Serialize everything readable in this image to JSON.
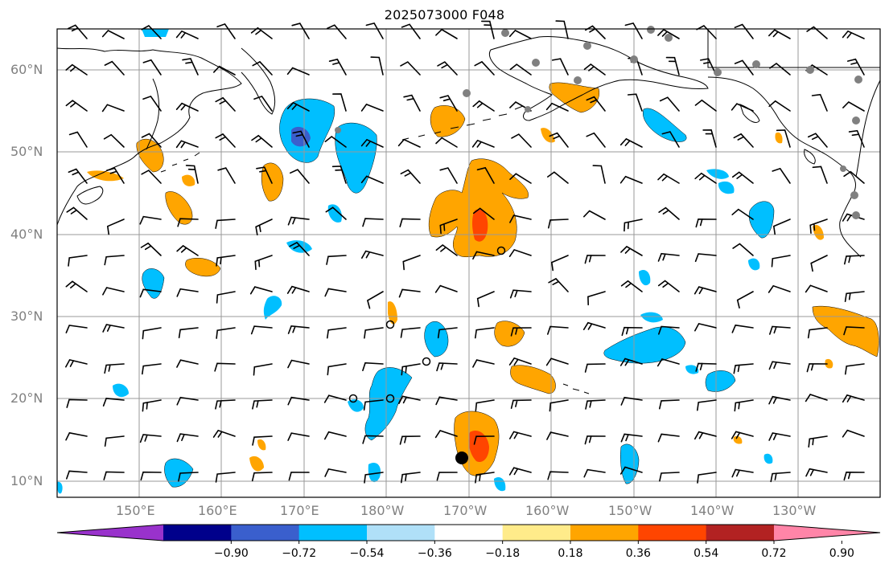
{
  "title": "2025073000 F048",
  "map": {
    "lat_labels": [
      "60°N",
      "50°N",
      "40°N",
      "30°N",
      "20°N",
      "10°N"
    ],
    "lon_labels": [
      "150°E",
      "160°E",
      "170°E",
      "180°W",
      "170°W",
      "160°W",
      "150°W",
      "140°W",
      "130°W"
    ],
    "grid_color": "#999999",
    "land_outline_color": "#000000",
    "station_marker_color": "#808080"
  },
  "colorbar": {
    "tick_labels": [
      "−0.90",
      "−0.72",
      "−0.54",
      "−0.36",
      "−0.18",
      "0.18",
      "0.36",
      "0.54",
      "0.72",
      "0.90"
    ],
    "colors": [
      "#9932cc",
      "#00008b",
      "#3a5fcd",
      "#00bfff",
      "#b0e0f8",
      "#ffffff",
      "#ffeb8a",
      "#ffa500",
      "#ff4500",
      "#b22222",
      "#ff85a8"
    ]
  }
}
